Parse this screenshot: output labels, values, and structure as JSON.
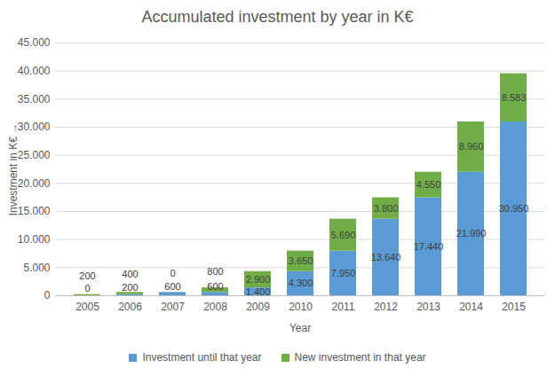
{
  "chart_data": {
    "type": "bar",
    "title": "Accumulated investment by year in K€",
    "x_label": "Year",
    "y_label": "Investment in K€",
    "categories": [
      "2005",
      "2006",
      "2007",
      "2008",
      "2009",
      "2010",
      "2011",
      "2012",
      "2013",
      "2014",
      "2015"
    ],
    "series": [
      {
        "name": "Investment until that year",
        "color": "#5b9bd5",
        "values": [
          0,
          200,
          600,
          600,
          1400,
          4300,
          7950,
          13640,
          17440,
          21990,
          30950
        ],
        "value_labels": [
          "0",
          "200",
          "600",
          "600",
          "1.400",
          "4.300",
          "7.950",
          "13.640",
          "17.440",
          "21.990",
          "30.950"
        ]
      },
      {
        "name": "New investment in that year",
        "color": "#70ad47",
        "values": [
          200,
          400,
          0,
          800,
          2900,
          3650,
          5690,
          3800,
          4550,
          8960,
          8583
        ],
        "value_labels": [
          "200",
          "400",
          "0",
          "800",
          "2.900",
          "3.650",
          "5.690",
          "3.800",
          "4.550",
          "8.960",
          "8.583"
        ]
      }
    ],
    "ylim": [
      0,
      45000
    ],
    "yticks": [
      0,
      {
        "value": 5000,
        "label": "5.000"
      },
      {
        "value": 10000,
        "label": "10.000"
      },
      {
        "value": 15000,
        "label": "15.000"
      },
      {
        "value": 20000,
        "label": "20.000"
      },
      {
        "value": 25000,
        "label": "25.000"
      },
      {
        "value": 30000,
        "label": "30.000"
      },
      {
        "value": 35000,
        "label": "35.000"
      },
      {
        "value": 40000,
        "label": "40.000"
      },
      {
        "value": 45000,
        "label": "45.000"
      }
    ],
    "grid": true,
    "stacked": true,
    "data_labels": true,
    "legend": "bottom"
  }
}
